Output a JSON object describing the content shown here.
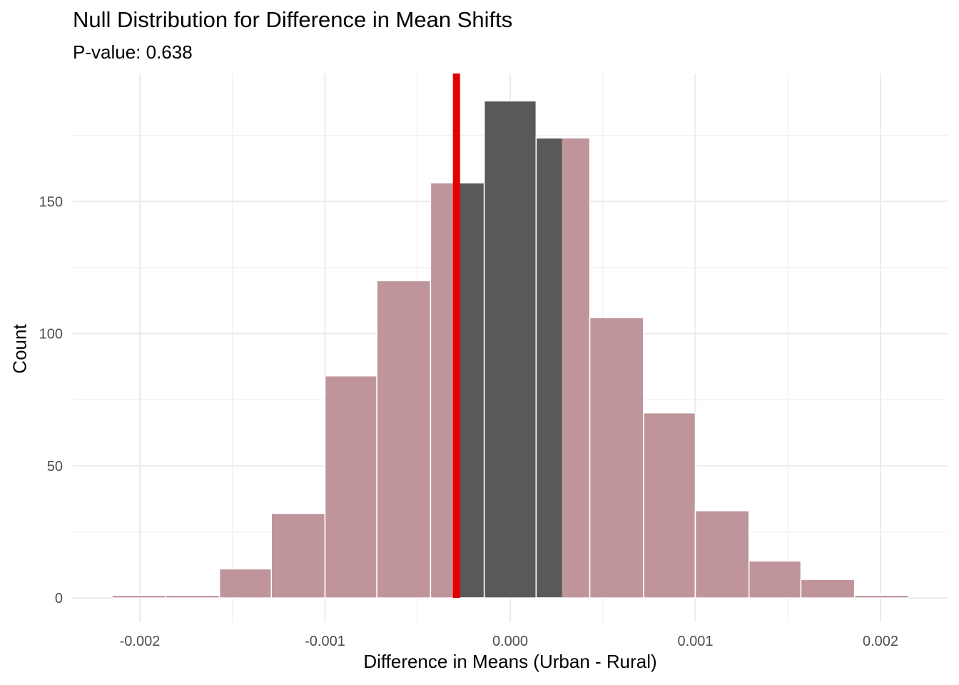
{
  "chart_data": {
    "type": "histogram",
    "title": "Null Distribution for Difference in Mean Shifts",
    "subtitle": "P-value: 0.638",
    "xlabel": "Difference in Means (Urban - Rural)",
    "ylabel": "Count",
    "xlim": [
      -0.00235,
      0.00235
    ],
    "ylim": [
      0,
      197
    ],
    "x_ticks": [
      -0.002,
      -0.001,
      0.0,
      0.001,
      0.002
    ],
    "x_tick_labels": [
      "-0.002",
      "-0.001",
      "0.000",
      "0.001",
      "0.002"
    ],
    "y_ticks": [
      0,
      50,
      100,
      150
    ],
    "y_tick_labels": [
      "0",
      "50",
      "100",
      "150"
    ],
    "grid": true,
    "bin_width": 0.000287,
    "bins": [
      {
        "x_min": -0.00215,
        "x_max": -0.00186,
        "count": 1,
        "shaded": true
      },
      {
        "x_min": -0.00186,
        "x_max": -0.00157,
        "count": 1,
        "shaded": true
      },
      {
        "x_min": -0.00157,
        "x_max": -0.00129,
        "count": 11,
        "shaded": true
      },
      {
        "x_min": -0.00129,
        "x_max": -0.001,
        "count": 32,
        "shaded": true
      },
      {
        "x_min": -0.001,
        "x_max": -0.00072,
        "count": 84,
        "shaded": true
      },
      {
        "x_min": -0.00072,
        "x_max": -0.00043,
        "count": 120,
        "shaded": true
      },
      {
        "x_min": -0.00043,
        "x_max": -0.00014,
        "count": 157,
        "shaded": true,
        "shade_until": -0.00029
      },
      {
        "x_min": -0.00014,
        "x_max": 0.00014,
        "count": 188,
        "shaded": false
      },
      {
        "x_min": 0.00014,
        "x_max": 0.00043,
        "count": 174,
        "shaded": true,
        "shade_from": 0.00028
      },
      {
        "x_min": 0.00043,
        "x_max": 0.00072,
        "count": 106,
        "shaded": true
      },
      {
        "x_min": 0.00072,
        "x_max": 0.001,
        "count": 70,
        "shaded": true
      },
      {
        "x_min": 0.001,
        "x_max": 0.00129,
        "count": 33,
        "shaded": true
      },
      {
        "x_min": 0.00129,
        "x_max": 0.00157,
        "count": 14,
        "shaded": true
      },
      {
        "x_min": 0.00157,
        "x_max": 0.00186,
        "count": 7,
        "shaded": true
      },
      {
        "x_min": 0.00186,
        "x_max": 0.00215,
        "count": 1,
        "shaded": true
      }
    ],
    "observed_value": -0.00029,
    "colors": {
      "bar": "#595959",
      "shade": "#bf959b",
      "observed_line": "#e60000",
      "bar_outline": "#ffffff",
      "grid": "#ebebeb",
      "tick_text": "#4d4d4d"
    }
  }
}
